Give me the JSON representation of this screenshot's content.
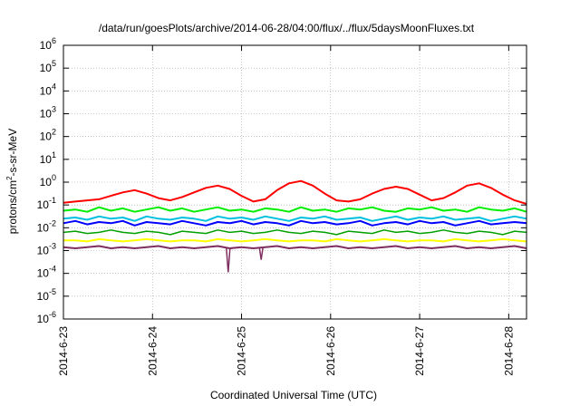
{
  "chart_data": {
    "type": "line",
    "title": "/data/run/goesPlots/archive/2014-06-28/04:00/flux/../flux/5daysMoonFluxes.txt",
    "xlabel": "Coordinated Universal Time (UTC)",
    "ylabel": {
      "base": "protons/cm",
      "sup": "2",
      "rest": "-s-sr-MeV"
    },
    "yscale": "log",
    "ylim": [
      -6,
      6
    ],
    "ytick_exponents": [
      -6,
      -5,
      -4,
      -3,
      -2,
      -1,
      0,
      1,
      2,
      3,
      4,
      5,
      6
    ],
    "ytick_base": "10",
    "x_unit": "days since 2014-6-23 00:00 UTC",
    "xlim": [
      0,
      5.2
    ],
    "xtick_labels": [
      "2014-6-23",
      "2014-6-24",
      "2014-6-25",
      "2014-6-26",
      "2014-6-27",
      "2014-6-28"
    ],
    "xtick_positions": [
      0,
      1,
      2,
      3,
      4,
      5
    ],
    "grid": true,
    "legend": "none",
    "series": [
      {
        "color": "#ff0000",
        "width": 2,
        "log10_values": [
          -0.9,
          -0.85,
          -0.8,
          -0.75,
          -0.6,
          -0.45,
          -0.35,
          -0.5,
          -0.7,
          -0.8,
          -0.65,
          -0.45,
          -0.25,
          -0.15,
          -0.3,
          -0.6,
          -0.85,
          -0.75,
          -0.35,
          -0.05,
          0.05,
          -0.15,
          -0.5,
          -0.8,
          -0.85,
          -0.75,
          -0.5,
          -0.3,
          -0.2,
          -0.3,
          -0.55,
          -0.8,
          -0.7,
          -0.45,
          -0.15,
          -0.05,
          -0.25,
          -0.55,
          -0.8,
          -0.95
        ]
      },
      {
        "color": "#00ee00",
        "width": 2,
        "log10_values": [
          -1.25,
          -1.2,
          -1.3,
          -1.1,
          -1.25,
          -1.15,
          -1.3,
          -1.2,
          -1.1,
          -1.25,
          -1.15,
          -1.3,
          -1.2,
          -1.1,
          -1.25,
          -1.2,
          -1.3,
          -1.15,
          -1.2,
          -1.3,
          -1.1,
          -1.25,
          -1.2,
          -1.3,
          -1.15,
          -1.2,
          -1.1,
          -1.25,
          -1.3,
          -1.15,
          -1.2,
          -1.1,
          -1.25,
          -1.2,
          -1.3,
          -1.1,
          -1.2,
          -1.25,
          -1.15,
          -1.3
        ]
      },
      {
        "color": "#00c0e0",
        "width": 2,
        "log10_values": [
          -1.6,
          -1.55,
          -1.65,
          -1.5,
          -1.6,
          -1.55,
          -1.7,
          -1.5,
          -1.6,
          -1.65,
          -1.55,
          -1.6,
          -1.7,
          -1.5,
          -1.6,
          -1.55,
          -1.65,
          -1.5,
          -1.6,
          -1.7,
          -1.55,
          -1.6,
          -1.5,
          -1.65,
          -1.6,
          -1.55,
          -1.7,
          -1.6,
          -1.5,
          -1.65,
          -1.55,
          -1.6,
          -1.5,
          -1.65,
          -1.6,
          -1.55,
          -1.7,
          -1.6,
          -1.5,
          -1.6
        ]
      },
      {
        "color": "#0000ff",
        "width": 2,
        "log10_values": [
          -1.8,
          -1.7,
          -1.85,
          -1.75,
          -1.8,
          -1.7,
          -1.9,
          -1.75,
          -1.8,
          -1.85,
          -1.7,
          -1.8,
          -1.9,
          -1.75,
          -1.8,
          -1.7,
          -1.85,
          -1.75,
          -1.8,
          -1.9,
          -1.7,
          -1.8,
          -1.75,
          -1.85,
          -1.8,
          -1.7,
          -1.9,
          -1.8,
          -1.75,
          -1.85,
          -1.7,
          -1.8,
          -1.75,
          -1.9,
          -1.8,
          -1.7,
          -1.85,
          -1.8,
          -1.75,
          -1.8
        ]
      },
      {
        "color": "#00a000",
        "width": 1.5,
        "log10_values": [
          -2.2,
          -2.15,
          -2.25,
          -2.2,
          -2.1,
          -2.2,
          -2.25,
          -2.15,
          -2.2,
          -2.3,
          -2.15,
          -2.2,
          -2.25,
          -2.1,
          -2.2,
          -2.15,
          -2.25,
          -2.2,
          -2.1,
          -2.2,
          -2.25,
          -2.15,
          -2.2,
          -2.3,
          -2.15,
          -2.2,
          -2.25,
          -2.1,
          -2.2,
          -2.15,
          -2.25,
          -2.2,
          -2.1,
          -2.2,
          -2.25,
          -2.15,
          -2.2,
          -2.3,
          -2.15,
          -2.2
        ]
      },
      {
        "color": "#ffff00",
        "width": 2,
        "log10_values": [
          -2.55,
          -2.55,
          -2.6,
          -2.5,
          -2.55,
          -2.6,
          -2.55,
          -2.5,
          -2.55,
          -2.6,
          -2.55,
          -2.55,
          -2.6,
          -2.5,
          -2.55,
          -2.6,
          -2.55,
          -2.5,
          -2.55,
          -2.6,
          -2.55,
          -2.55,
          -2.6,
          -2.5,
          -2.55,
          -2.6,
          -2.55,
          -2.5,
          -2.55,
          -2.6,
          -2.55,
          -2.55,
          -2.6,
          -2.5,
          -2.55,
          -2.6,
          -2.55,
          -2.5,
          -2.55,
          -2.6
        ]
      },
      {
        "color": "#7f2f5f",
        "width": 2,
        "log10_values": [
          -2.85,
          -2.9,
          -2.85,
          -2.8,
          -2.9,
          -2.85,
          -2.9,
          -2.85,
          -2.8,
          -2.9,
          -2.85,
          -2.9,
          -2.85,
          -2.8,
          -2.9,
          -2.85,
          -2.9,
          -2.85,
          -2.8,
          -2.9,
          -2.85,
          -2.9,
          -2.85,
          -2.8,
          -2.9,
          -2.85,
          -2.9,
          -2.85,
          -2.8,
          -2.9,
          -2.85,
          -2.9,
          -2.85,
          -2.8,
          -2.9,
          -2.85,
          -2.9,
          -2.85,
          -2.8,
          -2.9
        ]
      }
    ],
    "dips": [
      {
        "x": 1.85,
        "log10_value": -3.95,
        "color": "#7f2f5f"
      },
      {
        "x": 2.22,
        "log10_value": -3.4,
        "color": "#7f2f5f"
      }
    ]
  }
}
